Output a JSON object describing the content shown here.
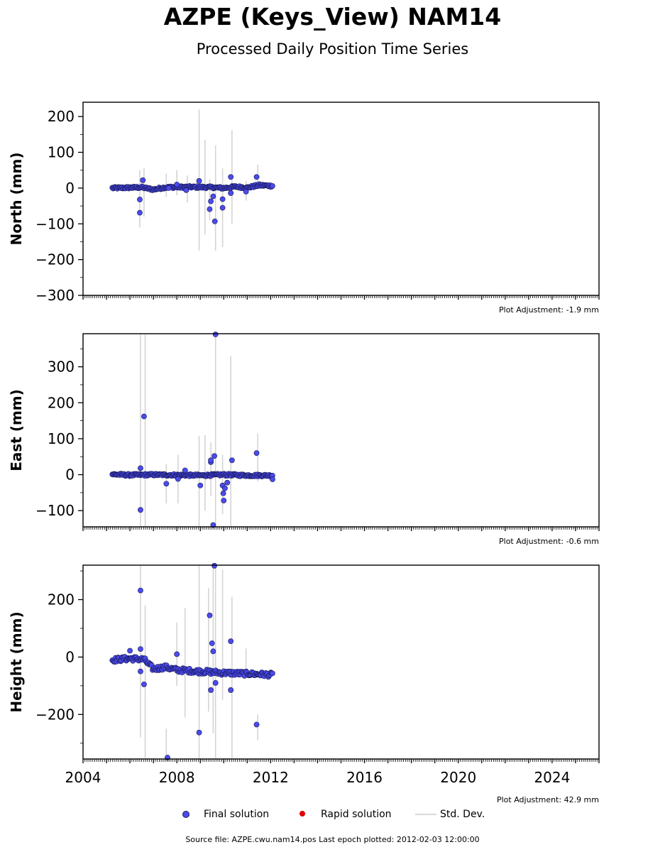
{
  "title": "AZPE (Keys_View) NAM14",
  "subtitle": "Processed Daily Position Time Series",
  "footer": "Source file: AZPE.cwu.nam14.pos  Last epoch plotted: 2012-02-03 12:00:00",
  "legend": [
    {
      "label": "Final solution",
      "kind": "marker",
      "color": "#4b4bf0"
    },
    {
      "label": "Rapid solution",
      "kind": "marker",
      "color": "#e00000"
    },
    {
      "label": "Std. Dev.",
      "kind": "line",
      "color": "#d9d9d9"
    }
  ],
  "chart_data": [
    {
      "type": "scatter",
      "ylabel": "North (mm)",
      "xlim": [
        2004,
        2026
      ],
      "ylim": [
        -300,
        240
      ],
      "yticks": [
        200,
        100,
        0,
        -100,
        -200,
        -300
      ],
      "yticklabels": [
        "200",
        "100",
        "0",
        "−100",
        "−200",
        "−300"
      ],
      "adjustment": "Plot Adjustment: -1.9 mm",
      "series": [
        {
          "baseline": [
            [
              2005.25,
              0
            ],
            [
              2006.5,
              2
            ],
            [
              2007.0,
              -4
            ],
            [
              2007.5,
              2
            ],
            [
              2008.5,
              3
            ],
            [
              2009.5,
              2
            ],
            [
              2010.0,
              0
            ],
            [
              2010.5,
              4
            ],
            [
              2011.0,
              1
            ],
            [
              2011.5,
              8
            ],
            [
              2012.09,
              6
            ]
          ],
          "noise": 3,
          "outliers": [
            [
              2006.42,
              -32
            ],
            [
              2006.42,
              -69
            ],
            [
              2006.55,
              22
            ],
            [
              2007.65,
              0
            ],
            [
              2008.0,
              10
            ],
            [
              2008.4,
              -6
            ],
            [
              2008.95,
              20
            ],
            [
              2009.4,
              -59
            ],
            [
              2009.45,
              -37
            ],
            [
              2009.55,
              -23
            ],
            [
              2009.62,
              -93
            ],
            [
              2009.95,
              -31
            ],
            [
              2009.95,
              -55
            ],
            [
              2010.3,
              31
            ],
            [
              2010.3,
              -14
            ],
            [
              2011.4,
              31
            ],
            [
              2010.95,
              -10
            ]
          ],
          "errorbars": [
            [
              2006.42,
              -110,
              50
            ],
            [
              2006.6,
              -80,
              55
            ],
            [
              2007.55,
              -25,
              40
            ],
            [
              2008.0,
              -20,
              50
            ],
            [
              2008.45,
              -40,
              35
            ],
            [
              2008.95,
              -175,
              220
            ],
            [
              2009.2,
              -130,
              135
            ],
            [
              2009.4,
              -90,
              25
            ],
            [
              2009.65,
              -175,
              120
            ],
            [
              2009.95,
              -165,
              55
            ],
            [
              2010.35,
              -100,
              162
            ],
            [
              2010.95,
              -35,
              20
            ],
            [
              2011.45,
              0,
              65
            ]
          ]
        }
      ]
    },
    {
      "type": "scatter",
      "ylabel": "East (mm)",
      "xlim": [
        2004,
        2026
      ],
      "ylim": [
        -145,
        392
      ],
      "yticks": [
        300,
        200,
        100,
        0,
        -100
      ],
      "yticklabels": [
        "300",
        "200",
        "100",
        "0",
        "−100"
      ],
      "adjustment": "Plot Adjustment: -0.6 mm",
      "series": [
        {
          "baseline": [
            [
              2005.25,
              1
            ],
            [
              2006.0,
              -1
            ],
            [
              2007.0,
              0
            ],
            [
              2008.0,
              -1
            ],
            [
              2009.0,
              -2
            ],
            [
              2010.0,
              0
            ],
            [
              2011.0,
              -2
            ],
            [
              2012.09,
              -2
            ]
          ],
          "noise": 3,
          "outliers": [
            [
              2006.45,
              18
            ],
            [
              2006.45,
              -98
            ],
            [
              2006.6,
              162
            ],
            [
              2007.55,
              -25
            ],
            [
              2008.05,
              -12
            ],
            [
              2008.35,
              12
            ],
            [
              2009.0,
              -30
            ],
            [
              2009.45,
              35
            ],
            [
              2009.45,
              40
            ],
            [
              2009.55,
              -140
            ],
            [
              2009.6,
              52
            ],
            [
              2009.65,
              390
            ],
            [
              2009.95,
              -30
            ],
            [
              2009.98,
              -52
            ],
            [
              2010.0,
              -72
            ],
            [
              2010.05,
              -38
            ],
            [
              2010.15,
              -22
            ],
            [
              2010.35,
              40
            ],
            [
              2011.4,
              60
            ],
            [
              2012.08,
              -13
            ]
          ],
          "errorbars": [
            [
              2006.45,
              -145,
              392
            ],
            [
              2006.65,
              -145,
              392
            ],
            [
              2007.55,
              -80,
              30
            ],
            [
              2008.05,
              -80,
              55
            ],
            [
              2008.95,
              -145,
              108
            ],
            [
              2009.2,
              -100,
              110
            ],
            [
              2009.45,
              -60,
              90
            ],
            [
              2009.65,
              -145,
              392
            ],
            [
              2009.95,
              -110,
              55
            ],
            [
              2010.3,
              -145,
              330
            ],
            [
              2011.45,
              -20,
              115
            ]
          ]
        }
      ]
    },
    {
      "type": "scatter",
      "ylabel": "Height (mm)",
      "xlim": [
        2004,
        2026
      ],
      "xticks": [
        2004,
        2008,
        2012,
        2016,
        2020,
        2024
      ],
      "ylim": [
        -355,
        320
      ],
      "yticks": [
        200,
        0,
        -200
      ],
      "yticklabels": [
        "200",
        "0",
        "−200"
      ],
      "adjustment": "Plot Adjustment: 42.9 mm",
      "series": [
        {
          "baseline": [
            [
              2005.25,
              -10
            ],
            [
              2006.0,
              -5
            ],
            [
              2006.6,
              -8
            ],
            [
              2007.0,
              -42
            ],
            [
              2007.5,
              -35
            ],
            [
              2008.0,
              -45
            ],
            [
              2009.0,
              -50
            ],
            [
              2010.0,
              -55
            ],
            [
              2011.0,
              -58
            ],
            [
              2012.09,
              -62
            ]
          ],
          "noise": 8,
          "outliers": [
            [
              2006.45,
              232
            ],
            [
              2006.45,
              28
            ],
            [
              2006.45,
              -50
            ],
            [
              2006.6,
              -95
            ],
            [
              2007.6,
              -350
            ],
            [
              2008.0,
              10
            ],
            [
              2008.95,
              -263
            ],
            [
              2009.4,
              145
            ],
            [
              2009.45,
              -115
            ],
            [
              2009.5,
              48
            ],
            [
              2009.55,
              20
            ],
            [
              2009.6,
              318
            ],
            [
              2009.65,
              -90
            ],
            [
              2010.3,
              55
            ],
            [
              2010.3,
              -115
            ],
            [
              2011.4,
              -235
            ],
            [
              2006.0,
              22
            ]
          ],
          "errorbars": [
            [
              2006.45,
              -280,
              320
            ],
            [
              2006.65,
              -355,
              180
            ],
            [
              2007.55,
              -355,
              -250
            ],
            [
              2008.0,
              -100,
              120
            ],
            [
              2008.35,
              -210,
              170
            ],
            [
              2008.95,
              -355,
              320
            ],
            [
              2009.35,
              -190,
              240
            ],
            [
              2009.55,
              -265,
              320
            ],
            [
              2009.65,
              -355,
              320
            ],
            [
              2009.95,
              -150,
              305
            ],
            [
              2010.35,
              -355,
              210
            ],
            [
              2010.95,
              -40,
              30
            ],
            [
              2011.45,
              -290,
              -200
            ]
          ]
        }
      ]
    }
  ]
}
